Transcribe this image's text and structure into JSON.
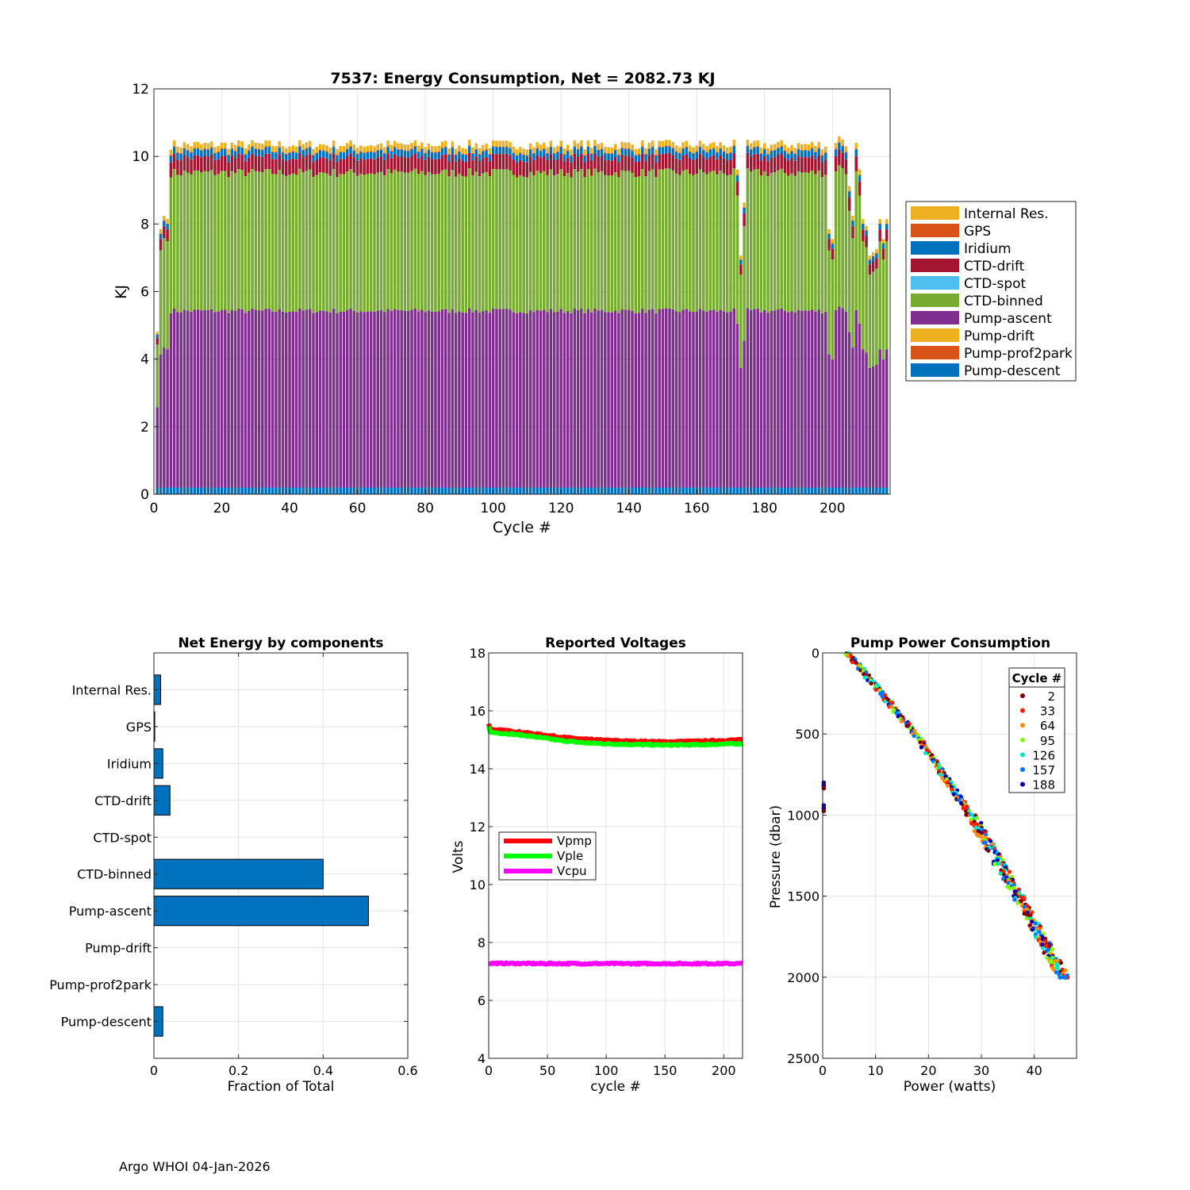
{
  "footer": "Argo WHOI 04-Jan-2026",
  "chart_data": [
    {
      "type": "bar",
      "stacked": true,
      "title": "7537: Energy Consumption,  Net = 2082.73 KJ",
      "xlabel": "Cycle #",
      "ylabel": "KJ",
      "xlim": [
        0,
        217
      ],
      "ylim": [
        0,
        12
      ],
      "xticks": [
        0,
        20,
        40,
        60,
        80,
        100,
        120,
        140,
        160,
        180,
        200
      ],
      "yticks": [
        0,
        2,
        4,
        6,
        8,
        10,
        12
      ],
      "grid": true,
      "legend_position": "right",
      "series_note": "per-cycle values are generated by the drawing script from the components and cycle_totals below",
      "components": [
        {
          "name": "Pump-descent",
          "color": "#0072BD",
          "typical": 0.2
        },
        {
          "name": "Pump-prof2park",
          "color": "#D95319",
          "typical": 0.0
        },
        {
          "name": "Pump-drift",
          "color": "#EDB120",
          "typical": 0.0
        },
        {
          "name": "Pump-ascent",
          "color": "#7E2F8E",
          "typical": 5.25
        },
        {
          "name": "CTD-binned",
          "color": "#77AC30",
          "typical": 4.1
        },
        {
          "name": "CTD-spot",
          "color": "#4DBEEE",
          "typical": 0.0
        },
        {
          "name": "CTD-drift",
          "color": "#A2142F",
          "typical": 0.45
        },
        {
          "name": "Iridium",
          "color": "#0072BD",
          "typical": 0.2
        },
        {
          "name": "GPS",
          "color": "#D95319",
          "typical": 0.02
        },
        {
          "name": "Internal Res.",
          "color": "#EDB120",
          "typical": 0.17
        }
      ],
      "legend_order": [
        "Internal Res.",
        "GPS",
        "Iridium",
        "CTD-drift",
        "CTD-spot",
        "CTD-binned",
        "Pump-ascent",
        "Pump-drift",
        "Pump-prof2park",
        "Pump-descent"
      ],
      "cycle_count": 216,
      "cycle_totals_special": {
        "1": 4.7,
        "2": 7.8,
        "3": 8.2,
        "4": 8.1,
        "172": 9.6,
        "173": 7.0,
        "174": 8.6,
        "199": 7.8,
        "200": 7.5,
        "201": 10.4,
        "202": 10.6,
        "203": 10.5,
        "204": 10.3,
        "205": 9.1,
        "206": 8.2,
        "207": 10.4,
        "208": 9.6,
        "209": 8.1,
        "210": 7.9,
        "211": 7.0,
        "212": 7.1,
        "213": 7.2,
        "214": 8.1,
        "215": 7.5,
        "216": 8.1
      },
      "cycle_total_typical": 10.35
    },
    {
      "type": "bar",
      "orientation": "horizontal",
      "title": "Net Energy by components",
      "xlabel": "Fraction of Total",
      "xlim": [
        0,
        0.6
      ],
      "xticks": [
        0,
        0.2,
        0.4,
        0.6
      ],
      "grid": true,
      "color": "#0072BD",
      "categories": [
        "Internal Res.",
        "GPS",
        "Iridium",
        "CTD-drift",
        "CTD-spot",
        "CTD-binned",
        "Pump-ascent",
        "Pump-drift",
        "Pump-prof2park",
        "Pump-descent"
      ],
      "values": [
        0.016,
        0.002,
        0.021,
        0.038,
        0.0,
        0.4,
        0.507,
        0.0,
        0.0,
        0.021
      ]
    },
    {
      "type": "line",
      "title": "Reported Voltages",
      "xlabel": "cycle #",
      "ylabel": "Volts",
      "xlim": [
        0,
        216
      ],
      "ylim": [
        4,
        18
      ],
      "xticks": [
        0,
        50,
        100,
        150,
        200
      ],
      "yticks": [
        4,
        6,
        8,
        10,
        12,
        14,
        16,
        18
      ],
      "grid": true,
      "legend_position": "center-left",
      "series": [
        {
          "name": "Vpmp",
          "color": "#FF0000",
          "x": [
            0,
            1,
            3,
            20,
            40,
            60,
            80,
            100,
            120,
            150,
            180,
            216
          ],
          "values": [
            15.55,
            15.4,
            15.35,
            15.3,
            15.2,
            15.1,
            15.02,
            14.98,
            14.95,
            14.93,
            14.95,
            15.0
          ]
        },
        {
          "name": "Vple",
          "color": "#00FF00",
          "x": [
            0,
            1,
            3,
            20,
            40,
            60,
            80,
            100,
            120,
            150,
            180,
            216
          ],
          "values": [
            15.45,
            15.3,
            15.25,
            15.2,
            15.1,
            14.98,
            14.9,
            14.86,
            14.84,
            14.82,
            14.83,
            14.87
          ]
        },
        {
          "name": "Vcpu",
          "color": "#FF00FF",
          "x": [
            0,
            50,
            100,
            150,
            216
          ],
          "values": [
            7.28,
            7.27,
            7.27,
            7.27,
            7.27
          ]
        }
      ]
    },
    {
      "type": "scatter",
      "title": "Pump Power Consumption",
      "xlabel": "Power (watts)",
      "ylabel": "Pressure (dbar)",
      "xlim": [
        0,
        48
      ],
      "ylim": [
        2500,
        0
      ],
      "xticks": [
        0,
        10,
        20,
        30,
        40
      ],
      "yticks": [
        0,
        500,
        1000,
        1500,
        2000,
        2500
      ],
      "grid": true,
      "legend_title": "Cycle #",
      "legend_position": "top-right",
      "legend_entries": [
        {
          "label": "2",
          "color": "#800000"
        },
        {
          "label": "33",
          "color": "#FF1A00"
        },
        {
          "label": "64",
          "color": "#FF8C00"
        },
        {
          "label": "95",
          "color": "#7FFF00"
        },
        {
          "label": "126",
          "color": "#00E5CC"
        },
        {
          "label": "157",
          "color": "#0073FF"
        },
        {
          "label": "188",
          "color": "#0000B3"
        }
      ],
      "trend": {
        "pressure": [
          0,
          500,
          1000,
          1500,
          2000
        ],
        "power": [
          4.7,
          17.5,
          28.0,
          37.0,
          45.5
        ]
      },
      "outliers": [
        {
          "power": 0.2,
          "pressure": 800
        },
        {
          "power": 0.2,
          "pressure": 820
        },
        {
          "power": 0.2,
          "pressure": 940
        },
        {
          "power": 0.2,
          "pressure": 960
        }
      ]
    }
  ]
}
